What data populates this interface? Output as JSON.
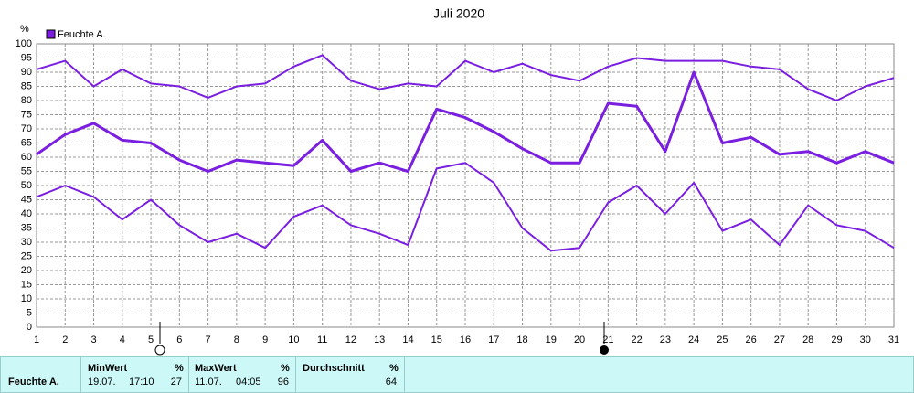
{
  "chart_data": {
    "type": "line",
    "title": "Juli 2020",
    "y_unit": "%",
    "legend": {
      "label": "Feuchte A.",
      "color": "#7a1fe0"
    },
    "x": [
      1,
      2,
      3,
      4,
      5,
      6,
      7,
      8,
      9,
      10,
      11,
      12,
      13,
      14,
      15,
      16,
      17,
      18,
      19,
      20,
      21,
      22,
      23,
      24,
      25,
      26,
      27,
      28,
      29,
      30,
      31
    ],
    "xlim": [
      1,
      31
    ],
    "xticks": [
      1,
      2,
      3,
      4,
      5,
      6,
      7,
      8,
      9,
      10,
      11,
      12,
      13,
      14,
      15,
      16,
      17,
      18,
      19,
      20,
      21,
      22,
      23,
      24,
      25,
      26,
      27,
      28,
      29,
      30,
      31
    ],
    "ylim": [
      0,
      100
    ],
    "yticks": [
      0,
      5,
      10,
      15,
      20,
      25,
      30,
      35,
      40,
      45,
      50,
      55,
      60,
      65,
      70,
      75,
      80,
      85,
      90,
      95,
      100
    ],
    "grid": true,
    "series": [
      {
        "color": "#7a1fe0",
        "values": [
          91,
          94,
          85,
          91,
          86,
          85,
          81,
          85,
          86,
          92,
          96,
          87,
          84,
          86,
          85,
          94,
          90,
          93,
          89,
          87,
          92,
          95,
          94,
          94,
          94,
          92,
          91,
          84,
          80,
          85,
          88
        ]
      },
      {
        "color": "#7a1fe0",
        "values": [
          61,
          68,
          72,
          66,
          65,
          59,
          55,
          59,
          58,
          57,
          66,
          55,
          58,
          55,
          77,
          74,
          69,
          63,
          58,
          58,
          79,
          78,
          62,
          90,
          65,
          67,
          61,
          62,
          58,
          62,
          58
        ]
      },
      {
        "color": "#7a1fe0",
        "values": [
          46,
          50,
          46,
          38,
          45,
          36,
          30,
          33,
          28,
          39,
          43,
          36,
          33,
          29,
          56,
          58,
          51,
          35,
          27,
          28,
          44,
          50,
          40,
          51,
          34,
          38,
          29,
          43,
          36,
          34,
          28
        ]
      }
    ]
  },
  "summary_table": {
    "row_label": "Feuchte A.",
    "min": {
      "header": "MinWert",
      "unit": "%",
      "date": "19.07.",
      "time": "17:10",
      "value": "27"
    },
    "max": {
      "header": "MaxWert",
      "unit": "%",
      "date": "11.07.",
      "time": "04:05",
      "value": "96"
    },
    "avg": {
      "header": "Durchschnitt",
      "unit": "%",
      "value": "64"
    }
  }
}
